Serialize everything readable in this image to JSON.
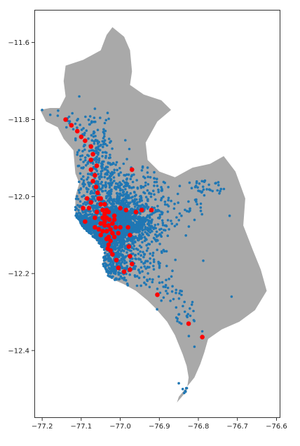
{
  "chart_data": {
    "type": "scatter",
    "title": "",
    "xlabel": "",
    "ylabel": "",
    "xlim": [
      -77.22,
      -76.59
    ],
    "ylim": [
      -12.575,
      -11.515
    ],
    "x_ticks": [
      -77.2,
      -77.1,
      -77.0,
      -76.9,
      -76.8,
      -76.7,
      -76.6
    ],
    "x_tick_labels": [
      "−77.2",
      "−77.1",
      "−77.0",
      "−76.9",
      "−76.8",
      "−76.7",
      "−76.6"
    ],
    "y_ticks": [
      -11.6,
      -11.8,
      -12.0,
      -12.2,
      -12.4
    ],
    "y_tick_labels": [
      "−11.6",
      "−11.8",
      "−12.0",
      "−12.2",
      "−12.4"
    ],
    "grid": false,
    "legend": "none",
    "background_shape": {
      "name": "region-boundary",
      "fill": "#a9a9a9",
      "outline": [
        [
          -77.02,
          -11.56
        ],
        [
          -76.99,
          -11.585
        ],
        [
          -76.975,
          -11.62
        ],
        [
          -76.97,
          -11.675
        ],
        [
          -76.975,
          -11.71
        ],
        [
          -76.94,
          -11.735
        ],
        [
          -76.895,
          -11.75
        ],
        [
          -76.87,
          -11.775
        ],
        [
          -76.905,
          -11.805
        ],
        [
          -76.935,
          -11.86
        ],
        [
          -76.93,
          -11.905
        ],
        [
          -76.9,
          -11.935
        ],
        [
          -76.86,
          -11.95
        ],
        [
          -76.815,
          -11.925
        ],
        [
          -76.77,
          -11.915
        ],
        [
          -76.735,
          -11.895
        ],
        [
          -76.705,
          -11.935
        ],
        [
          -76.68,
          -12.005
        ],
        [
          -76.685,
          -12.075
        ],
        [
          -76.66,
          -12.14
        ],
        [
          -76.64,
          -12.19
        ],
        [
          -76.625,
          -12.245
        ],
        [
          -76.655,
          -12.295
        ],
        [
          -76.695,
          -12.325
        ],
        [
          -76.74,
          -12.345
        ],
        [
          -76.775,
          -12.37
        ],
        [
          -76.785,
          -12.405
        ],
        [
          -76.795,
          -12.435
        ],
        [
          -76.81,
          -12.47
        ],
        [
          -76.83,
          -12.495
        ],
        [
          -76.85,
          -12.52
        ],
        [
          -76.855,
          -12.535
        ],
        [
          -76.83,
          -12.505
        ],
        [
          -76.825,
          -12.47
        ],
        [
          -76.83,
          -12.44
        ],
        [
          -76.84,
          -12.41
        ],
        [
          -76.86,
          -12.36
        ],
        [
          -76.88,
          -12.325
        ],
        [
          -76.91,
          -12.29
        ],
        [
          -76.93,
          -12.27
        ],
        [
          -76.96,
          -12.245
        ],
        [
          -76.99,
          -12.228
        ],
        [
          -77.03,
          -12.21
        ],
        [
          -77.045,
          -12.175
        ],
        [
          -77.04,
          -12.14
        ],
        [
          -77.07,
          -12.105
        ],
        [
          -77.095,
          -12.08
        ],
        [
          -77.115,
          -12.05
        ],
        [
          -77.115,
          -12.0
        ],
        [
          -77.105,
          -11.965
        ],
        [
          -77.115,
          -11.94
        ],
        [
          -77.12,
          -11.88
        ],
        [
          -77.145,
          -11.85
        ],
        [
          -77.16,
          -11.82
        ],
        [
          -77.19,
          -11.805
        ],
        [
          -77.205,
          -11.775
        ],
        [
          -77.18,
          -11.77
        ],
        [
          -77.155,
          -11.77
        ],
        [
          -77.14,
          -11.74
        ],
        [
          -77.145,
          -11.7
        ],
        [
          -77.14,
          -11.66
        ],
        [
          -77.095,
          -11.645
        ],
        [
          -77.05,
          -11.62
        ],
        [
          -77.035,
          -11.58
        ]
      ]
    },
    "series": [
      {
        "kind": "dense-points",
        "color": "#1f77b4",
        "radius": 1.8,
        "clusters": [
          {
            "center": [
              -77.03,
              -12.08
            ],
            "spread": [
              0.045,
              0.03
            ],
            "count": 900
          },
          {
            "center": [
              -77.1,
              -12.07
            ],
            "spread": [
              0.02,
              0.012
            ],
            "count": 160
          },
          {
            "center": [
              -76.97,
              -12.07
            ],
            "spread": [
              0.04,
              0.025
            ],
            "count": 360
          },
          {
            "center": [
              -77.045,
              -11.99
            ],
            "spread": [
              0.04,
              0.045
            ],
            "count": 300
          },
          {
            "center": [
              -77.06,
              -11.9
            ],
            "spread": [
              0.03,
              0.04
            ],
            "count": 150
          },
          {
            "center": [
              -77.02,
              -12.17
            ],
            "spread": [
              0.035,
              0.035
            ],
            "count": 320
          },
          {
            "center": [
              -76.99,
              -12.02
            ],
            "spread": [
              0.04,
              0.03
            ],
            "count": 170
          },
          {
            "center": [
              -76.93,
              -12.17
            ],
            "spread": [
              0.03,
              0.03
            ],
            "count": 70
          },
          {
            "center": [
              -76.87,
              -12.03
            ],
            "spread": [
              0.05,
              0.04
            ],
            "count": 70
          },
          {
            "center": [
              -76.78,
              -11.98
            ],
            "spread": [
              0.03,
              0.01
            ],
            "count": 30
          },
          {
            "center": [
              -76.94,
              -11.97
            ],
            "spread": [
              0.03,
              0.03
            ],
            "count": 40
          },
          {
            "center": [
              -76.88,
              -12.25
            ],
            "spread": [
              0.025,
              0.02
            ],
            "count": 25
          },
          {
            "center": [
              -76.83,
              -12.31
            ],
            "spread": [
              0.015,
              0.02
            ],
            "count": 22
          },
          {
            "center": [
              -77.06,
              -11.82
            ],
            "spread": [
              0.03,
              0.02
            ],
            "count": 30
          },
          {
            "center": [
              -77.12,
              -11.8
            ],
            "spread": [
              0.02,
              0.01
            ],
            "count": 12
          },
          {
            "center": [
              -76.84,
              -12.49
            ],
            "spread": [
              0.01,
              0.01
            ],
            "count": 6
          }
        ],
        "extra_points": [
          [
            -77.105,
            -11.74
          ],
          [
            -77.2,
            -11.775
          ],
          [
            -77.16,
            -11.79
          ],
          [
            -77.13,
            -11.81
          ],
          [
            -76.8,
            -11.985
          ],
          [
            -76.755,
            -11.965
          ],
          [
            -76.72,
            -12.05
          ],
          [
            -76.715,
            -12.26
          ],
          [
            -76.93,
            -11.925
          ],
          [
            -76.925,
            -12.235
          ],
          [
            -76.79,
            -12.35
          ],
          [
            -76.81,
            -12.39
          ],
          [
            -76.85,
            -12.485
          ],
          [
            -76.84,
            -12.5
          ]
        ]
      },
      {
        "kind": "markers",
        "color": "#ff0000",
        "radius": 3.3,
        "points": [
          [
            -77.14,
            -11.8
          ],
          [
            -77.125,
            -11.815
          ],
          [
            -77.11,
            -11.83
          ],
          [
            -77.1,
            -11.845
          ],
          [
            -77.09,
            -11.855
          ],
          [
            -77.075,
            -11.87
          ],
          [
            -77.07,
            -11.89
          ],
          [
            -77.075,
            -11.905
          ],
          [
            -77.06,
            -11.92
          ],
          [
            -77.075,
            -11.93
          ],
          [
            -77.065,
            -11.945
          ],
          [
            -77.07,
            -11.96
          ],
          [
            -77.062,
            -11.975
          ],
          [
            -77.058,
            -11.99
          ],
          [
            -77.055,
            -12.005
          ],
          [
            -77.05,
            -12.02
          ],
          [
            -77.045,
            -12.035
          ],
          [
            -77.04,
            -12.045
          ],
          [
            -77.035,
            -12.055
          ],
          [
            -77.04,
            -12.065
          ],
          [
            -77.03,
            -12.075
          ],
          [
            -77.035,
            -12.09
          ],
          [
            -77.03,
            -12.105
          ],
          [
            -77.025,
            -12.115
          ],
          [
            -77.03,
            -12.125
          ],
          [
            -77.025,
            -12.14
          ],
          [
            -77.02,
            -12.15
          ],
          [
            -77.028,
            -12.06
          ],
          [
            -77.02,
            -12.07
          ],
          [
            -77.015,
            -12.05
          ],
          [
            -77.035,
            -12.035
          ],
          [
            -77.045,
            -12.055
          ],
          [
            -77.05,
            -12.07
          ],
          [
            -77.055,
            -12.085
          ],
          [
            -77.085,
            -12.005
          ],
          [
            -77.08,
            -12.03
          ],
          [
            -77.06,
            -12.04
          ],
          [
            -77.04,
            -12.075
          ],
          [
            -77.025,
            -12.085
          ],
          [
            -77.015,
            -12.06
          ],
          [
            -77.0,
            -12.08
          ],
          [
            -77.005,
            -12.095
          ],
          [
            -77.015,
            -12.105
          ],
          [
            -77.035,
            -12.11
          ],
          [
            -77.05,
            -12.1
          ],
          [
            -77.0,
            -12.03
          ],
          [
            -76.985,
            -12.035
          ],
          [
            -76.98,
            -12.08
          ],
          [
            -76.975,
            -12.1
          ],
          [
            -76.978,
            -12.13
          ],
          [
            -76.975,
            -12.155
          ],
          [
            -76.97,
            -12.175
          ],
          [
            -76.975,
            -12.19
          ],
          [
            -76.99,
            -12.195
          ],
          [
            -77.005,
            -12.185
          ],
          [
            -77.01,
            -12.165
          ],
          [
            -76.96,
            -12.04
          ],
          [
            -76.945,
            -12.035
          ],
          [
            -76.92,
            -12.035
          ],
          [
            -76.97,
            -11.93
          ],
          [
            -76.905,
            -12.255
          ],
          [
            -76.825,
            -12.33
          ],
          [
            -76.79,
            -12.365
          ],
          [
            -77.065,
            -12.08
          ],
          [
            -77.09,
            -12.065
          ],
          [
            -77.095,
            -12.03
          ],
          [
            -77.065,
            -12.055
          ],
          [
            -77.04,
            -12.02
          ],
          [
            -77.03,
            -12.04
          ],
          [
            -77.012,
            -12.08
          ],
          [
            -77.02,
            -12.095
          ],
          [
            -77.045,
            -12.09
          ],
          [
            -77.032,
            -12.135
          ],
          [
            -77.05,
            -12.005
          ],
          [
            -77.075,
            -12.015
          ]
        ]
      }
    ]
  }
}
